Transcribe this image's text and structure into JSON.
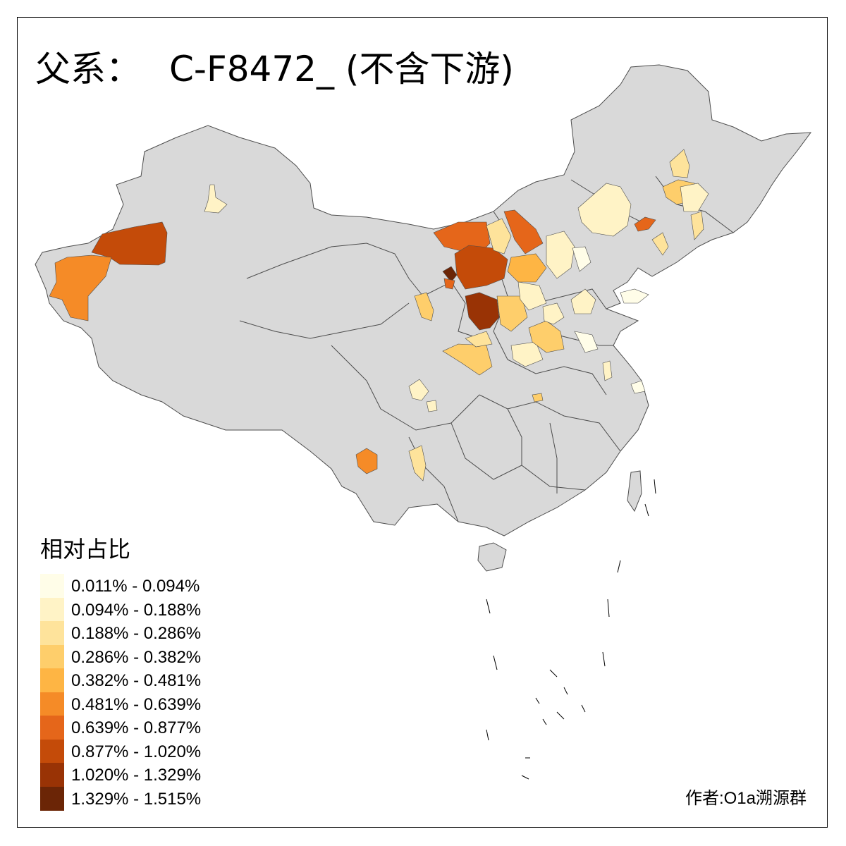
{
  "title": {
    "prefix": "父系：",
    "haplogroup": "C-F8472_ (不含下游)"
  },
  "legend": {
    "title": "相对占比",
    "items": [
      {
        "label": "0.011% - 0.094%",
        "color": "#fffde8"
      },
      {
        "label": "0.094% - 0.188%",
        "color": "#fff3c6"
      },
      {
        "label": "0.188% - 0.286%",
        "color": "#fee39b"
      },
      {
        "label": "0.286% - 0.382%",
        "color": "#fece6b"
      },
      {
        "label": "0.382% - 0.481%",
        "color": "#feb544"
      },
      {
        "label": "0.481% - 0.639%",
        "color": "#f58b27"
      },
      {
        "label": "0.639% - 0.877%",
        "color": "#e5661a"
      },
      {
        "label": "0.877% - 1.020%",
        "color": "#c44b09"
      },
      {
        "label": "1.020% - 1.329%",
        "color": "#993305"
      },
      {
        "label": "1.329% - 1.515%",
        "color": "#6b2506"
      }
    ]
  },
  "credit": "作者:O1a溯源群",
  "colors": {
    "base_land": "#d9d9d9",
    "border": "#4d4d4d",
    "background": "#ffffff"
  }
}
